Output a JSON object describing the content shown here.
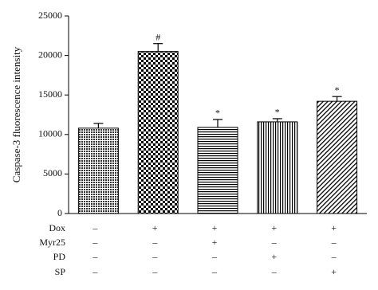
{
  "chart_data": {
    "type": "bar",
    "y_label": "Caspase-3 fluorescence intensity",
    "values": [
      10800,
      20500,
      10900,
      11600,
      14200
    ],
    "errors": [
      600,
      1000,
      1000,
      400,
      600
    ],
    "annotations": [
      null,
      "#",
      "*",
      "*",
      "*"
    ],
    "patterns": [
      "dots",
      "checker",
      "horizontal",
      "vertical",
      "diagonal"
    ],
    "ylim": [
      0,
      25000
    ],
    "yticks": [
      0,
      5000,
      10000,
      15000,
      20000,
      25000
    ],
    "table": {
      "rows": [
        {
          "label": "Dox",
          "cells": [
            "–",
            "+",
            "+",
            "+",
            "+"
          ]
        },
        {
          "label": "Myr25",
          "cells": [
            "–",
            "–",
            "+",
            "–",
            "–"
          ]
        },
        {
          "label": "PD",
          "cells": [
            "–",
            "–",
            "–",
            "+",
            "–"
          ]
        },
        {
          "label": "SP",
          "cells": [
            "–",
            "–",
            "–",
            "–",
            "+"
          ]
        }
      ]
    }
  }
}
